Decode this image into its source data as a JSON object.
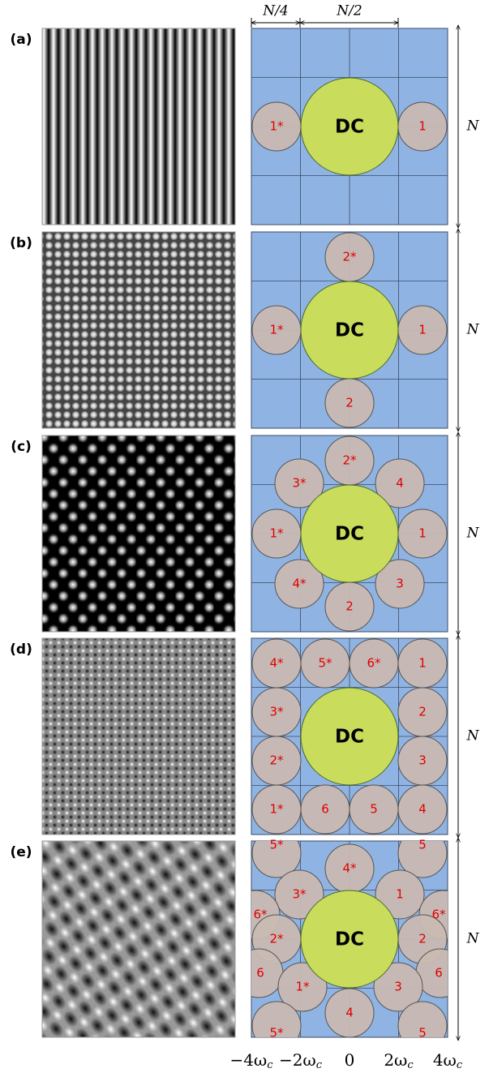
{
  "header": {
    "dim_top": [
      "N/4",
      "N/2"
    ],
    "dim_side": "N"
  },
  "panels": [
    {
      "label": "(a)",
      "dc": "DC",
      "circles": [
        "1*",
        "1"
      ]
    },
    {
      "label": "(b)",
      "dc": "DC",
      "circles": [
        "1*",
        "1",
        "2*",
        "2"
      ]
    },
    {
      "label": "(c)",
      "dc": "DC",
      "circles": [
        "2*",
        "4",
        "1",
        "3",
        "2",
        "4*",
        "1*",
        "3*"
      ]
    },
    {
      "label": "(d)",
      "dc": "DC",
      "circles": [
        "4*",
        "5*",
        "6*",
        "1",
        "3*",
        "2*",
        "1*",
        "2",
        "3",
        "4",
        "6",
        "5"
      ]
    },
    {
      "label": "(e)",
      "dc": "DC",
      "circles": [
        "5*",
        "5",
        "4*",
        "3*",
        "1",
        "6*",
        "6*",
        "2*",
        "2",
        "6",
        "6",
        "1*",
        "3",
        "4",
        "5*",
        "5"
      ]
    }
  ],
  "axis_labels": [
    {
      "main": "−4ω",
      "sub": "c"
    },
    {
      "main": "−2ω",
      "sub": "c"
    },
    {
      "main": "0",
      "sub": ""
    },
    {
      "main": "2ω",
      "sub": "c"
    },
    {
      "main": "4ω",
      "sub": "c"
    }
  ]
}
